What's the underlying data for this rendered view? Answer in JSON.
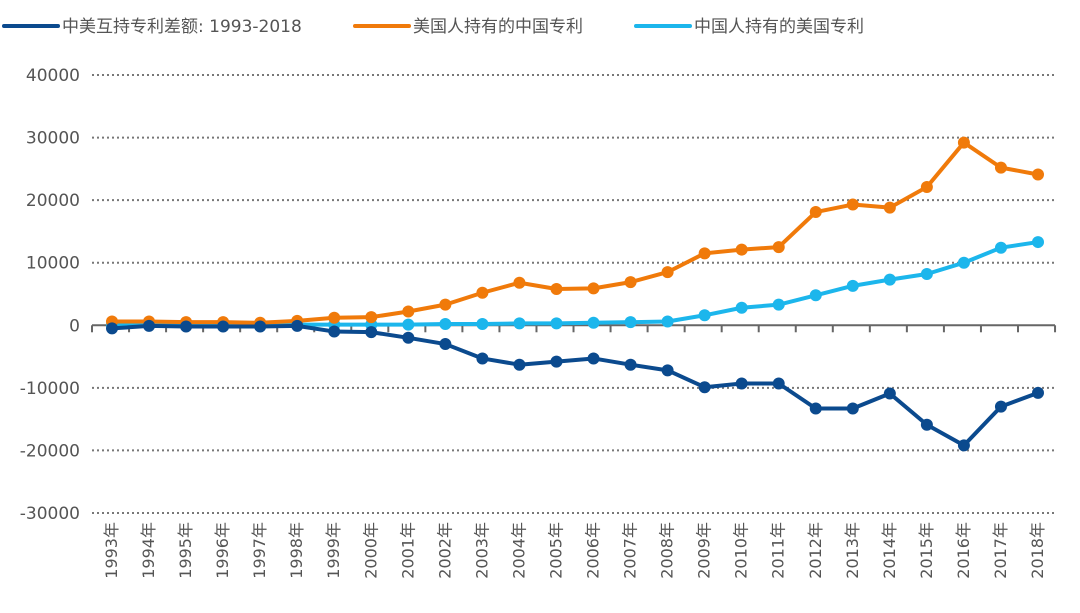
{
  "chart_data": {
    "type": "line",
    "title": "",
    "xlabel": "",
    "ylabel": "",
    "ylim": [
      -30000,
      40000
    ],
    "yticks": [
      40000,
      30000,
      20000,
      10000,
      0,
      -10000,
      -20000,
      -30000
    ],
    "grid": true,
    "legend_position": "top",
    "categories": [
      "1993年",
      "1994年",
      "1995年",
      "1996年",
      "1997年",
      "1998年",
      "1999年",
      "2000年",
      "2001年",
      "2002年",
      "2003年",
      "2004年",
      "2005年",
      "2006年",
      "2007年",
      "2008年",
      "2009年",
      "2010年",
      "2011年",
      "2012年",
      "2013年",
      "2014年",
      "2015年",
      "2016年",
      "2017年",
      "2018年"
    ],
    "series": [
      {
        "name": "中美互持专利差额: 1993-2018",
        "color": "#0b4a8e",
        "values": [
          -500,
          -100,
          -200,
          -200,
          -200,
          -100,
          -1000,
          -1100,
          -2000,
          -3000,
          -5300,
          -6300,
          -5800,
          -5300,
          -6300,
          -7200,
          -9900,
          -9300,
          -9300,
          -13300,
          -13300,
          -10900,
          -15900,
          -19200,
          -13000,
          -10800
        ]
      },
      {
        "name": "美国人持有的中国专利",
        "color": "#f07a0a",
        "values": [
          600,
          600,
          500,
          500,
          400,
          700,
          1200,
          1300,
          2200,
          3300,
          5200,
          6800,
          5800,
          5900,
          6900,
          8500,
          11500,
          12100,
          12500,
          18100,
          19300,
          18800,
          22100,
          29200,
          25200,
          24100
        ]
      },
      {
        "name": "中国人持有的美国专利",
        "color": "#1cb6ec",
        "values": [
          100,
          100,
          100,
          100,
          100,
          100,
          100,
          100,
          100,
          200,
          200,
          300,
          300,
          400,
          500,
          600,
          1600,
          2800,
          3300,
          4800,
          6300,
          7300,
          8200,
          10000,
          12400,
          13300
        ]
      }
    ]
  }
}
